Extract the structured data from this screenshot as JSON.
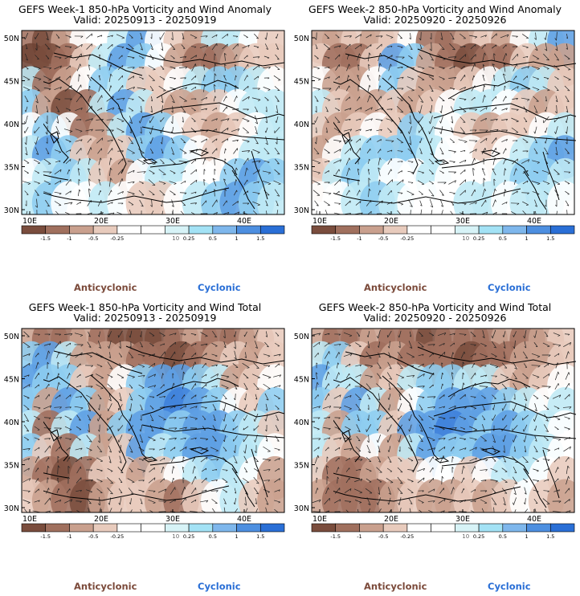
{
  "panels": [
    {
      "id": "p1",
      "title": "GEFS Week-1 850-hPa Vorticity and Wind Anomaly",
      "valid": "Valid: 20250913 - 20250919",
      "pattern": [
        [
          2,
          1,
          3,
          5,
          5,
          6,
          8,
          5,
          4,
          3,
          6,
          6,
          5,
          4
        ],
        [
          0,
          1,
          2,
          4,
          6,
          8,
          7,
          5,
          3,
          2,
          2,
          3,
          4,
          4
        ],
        [
          6,
          2,
          3,
          5,
          7,
          6,
          4,
          4,
          5,
          6,
          7,
          7,
          6,
          5
        ],
        [
          7,
          3,
          1,
          2,
          6,
          8,
          6,
          4,
          3,
          3,
          4,
          5,
          6,
          6
        ],
        [
          5,
          7,
          5,
          2,
          3,
          6,
          8,
          7,
          5,
          4,
          3,
          4,
          5,
          6
        ],
        [
          6,
          8,
          7,
          4,
          3,
          4,
          7,
          8,
          7,
          5,
          4,
          5,
          6,
          6
        ],
        [
          5,
          6,
          7,
          6,
          4,
          3,
          5,
          6,
          6,
          5,
          5,
          7,
          8,
          7
        ],
        [
          6,
          7,
          5,
          5,
          6,
          5,
          4,
          4,
          5,
          6,
          7,
          8,
          7,
          6
        ]
      ]
    },
    {
      "id": "p2",
      "title": "GEFS Week-2 850-hPa Vorticity and Wind Anomaly",
      "valid": "Valid: 20250920 - 20250926",
      "pattern": [
        [
          3,
          3,
          4,
          3,
          4,
          5,
          2,
          2,
          3,
          4,
          3,
          5,
          6,
          8
        ],
        [
          4,
          2,
          2,
          4,
          8,
          7,
          3,
          2,
          1,
          2,
          2,
          4,
          3,
          3
        ],
        [
          5,
          3,
          3,
          5,
          7,
          4,
          3,
          3,
          4,
          5,
          6,
          7,
          6,
          4
        ],
        [
          6,
          4,
          3,
          3,
          4,
          3,
          4,
          5,
          6,
          6,
          5,
          4,
          3,
          4
        ],
        [
          4,
          3,
          4,
          5,
          4,
          7,
          6,
          5,
          4,
          3,
          4,
          4,
          5,
          6
        ],
        [
          3,
          5,
          6,
          7,
          7,
          7,
          6,
          5,
          5,
          4,
          5,
          6,
          7,
          8
        ],
        [
          4,
          6,
          7,
          6,
          5,
          5,
          6,
          5,
          5,
          5,
          6,
          7,
          7,
          6
        ],
        [
          5,
          5,
          6,
          7,
          6,
          5,
          5,
          5,
          6,
          6,
          5,
          6,
          6,
          5
        ]
      ]
    },
    {
      "id": "p3",
      "title": "GEFS Week-1 850-hPa Vorticity and Wind Total",
      "valid": "Valid: 20250913 - 20250919",
      "pattern": [
        [
          3,
          2,
          2,
          3,
          2,
          1,
          1,
          1,
          2,
          3,
          2,
          2,
          3,
          4
        ],
        [
          7,
          8,
          6,
          3,
          3,
          3,
          2,
          2,
          1,
          2,
          3,
          4,
          3,
          4
        ],
        [
          8,
          7,
          7,
          4,
          3,
          5,
          7,
          8,
          8,
          7,
          6,
          3,
          4,
          5
        ],
        [
          7,
          3,
          8,
          7,
          3,
          4,
          7,
          8,
          9,
          8,
          7,
          5,
          4,
          7
        ],
        [
          6,
          2,
          6,
          8,
          3,
          7,
          8,
          8,
          7,
          8,
          8,
          7,
          6,
          4
        ],
        [
          7,
          4,
          2,
          6,
          3,
          4,
          8,
          6,
          7,
          8,
          8,
          7,
          6,
          5
        ],
        [
          3,
          2,
          1,
          2,
          4,
          4,
          3,
          4,
          5,
          6,
          7,
          6,
          5,
          3
        ],
        [
          4,
          3,
          2,
          1,
          3,
          4,
          4,
          3,
          2,
          4,
          5,
          6,
          4,
          3
        ]
      ]
    },
    {
      "id": "p4",
      "title": "GEFS Week-2 850-hPa Vorticity and Wind Total",
      "valid": "Valid: 20250920 - 20250926",
      "pattern": [
        [
          3,
          2,
          2,
          3,
          2,
          2,
          1,
          2,
          2,
          2,
          3,
          2,
          3,
          4
        ],
        [
          6,
          7,
          4,
          2,
          3,
          2,
          2,
          2,
          1,
          2,
          2,
          3,
          3,
          4
        ],
        [
          8,
          6,
          6,
          3,
          4,
          6,
          7,
          7,
          6,
          6,
          4,
          3,
          4,
          5
        ],
        [
          7,
          4,
          8,
          6,
          3,
          5,
          7,
          8,
          8,
          8,
          7,
          6,
          5,
          6
        ],
        [
          6,
          3,
          7,
          7,
          4,
          8,
          8,
          9,
          8,
          7,
          8,
          7,
          6,
          5
        ],
        [
          6,
          4,
          3,
          5,
          3,
          6,
          8,
          7,
          7,
          8,
          8,
          7,
          6,
          5
        ],
        [
          4,
          2,
          2,
          3,
          4,
          4,
          5,
          5,
          4,
          5,
          6,
          6,
          5,
          4
        ],
        [
          3,
          2,
          2,
          2,
          3,
          4,
          3,
          3,
          4,
          3,
          4,
          5,
          4,
          3
        ]
      ]
    }
  ],
  "lat_labels": [
    "50N",
    "45N",
    "40N",
    "35N",
    "30N"
  ],
  "lon_labels": [
    "10E",
    "20E",
    "30E",
    "40E"
  ],
  "legend": {
    "labels": [
      "-1.5",
      "-1",
      "-0.5",
      "-0.25",
      "0.25",
      "0.5",
      "1",
      "1.5"
    ],
    "scale_label": "10",
    "colors": [
      "#7a4d3d",
      "#a0705e",
      "#c9a08e",
      "#e8cbbd",
      "#ffffff",
      "#ffffff",
      "#d7f3f7",
      "#a3e2f5",
      "#7eb7ec",
      "#4d8fe0",
      "#2a6fd6"
    ]
  },
  "captions": {
    "anticyclonic": "Anticyclonic",
    "cyclonic": "Cyclonic"
  }
}
